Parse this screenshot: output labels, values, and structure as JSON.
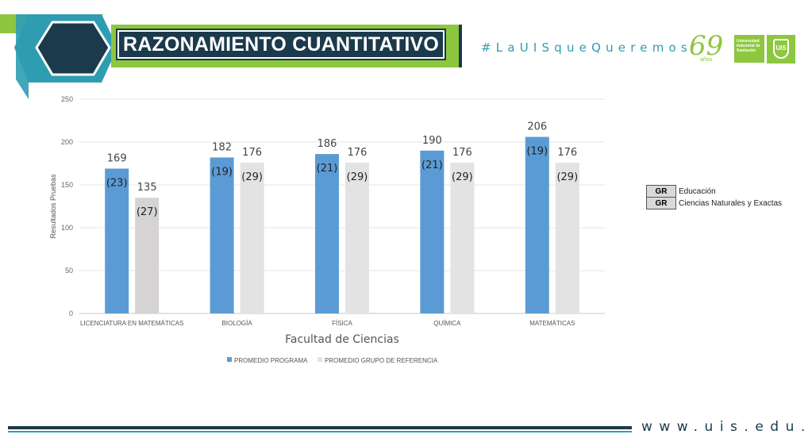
{
  "header": {
    "title": "RAZONAMIENTO CUANTITATIVO",
    "hashtag": "#LaUISqueQueremos",
    "website": "www.uis.edu.co",
    "logo_anniversary": "69",
    "logo_anniversary_sub": "años",
    "logo_university": "Universidad Industrial de Santander",
    "logo_shield_text": "UIS"
  },
  "reference_groups": [
    {
      "code": "GR",
      "label": "Educación"
    },
    {
      "code": "GR",
      "label": "Ciencias Naturales y Exactas"
    }
  ],
  "colors": {
    "program": "#5b9bd5",
    "reference": "#e3e3e3",
    "reference_first": "#d5d3d3",
    "navy": "#1b3a4b",
    "teal": "#2f9db1",
    "green": "#8dc63f"
  },
  "chart_data": {
    "type": "bar",
    "title": "",
    "xlabel": "Facultad de Ciencias",
    "ylabel": "Resultados Pruebas",
    "ylim": [
      0,
      250
    ],
    "yticks": [
      0,
      50,
      100,
      150,
      200,
      250
    ],
    "grid": true,
    "legend_position": "bottom",
    "categories": [
      "LICENCIATURA EN MATEMÁTICAS",
      "BIOLOGÍA",
      "FÍSICA",
      "QUÍMICA",
      "MATEMÁTICAS"
    ],
    "series": [
      {
        "name": "PROMEDIO PROGRAMA",
        "values": [
          169,
          182,
          186,
          190,
          206
        ],
        "annotations": [
          "(23)",
          "(19)",
          "(21)",
          "(21)",
          "(19)"
        ]
      },
      {
        "name": "PROMEDIO GRUPO DE REFERENCIA",
        "values": [
          135,
          176,
          176,
          176,
          176
        ],
        "annotations": [
          "(27)",
          "(29)",
          "(29)",
          "(29)",
          "(29)"
        ]
      }
    ]
  }
}
